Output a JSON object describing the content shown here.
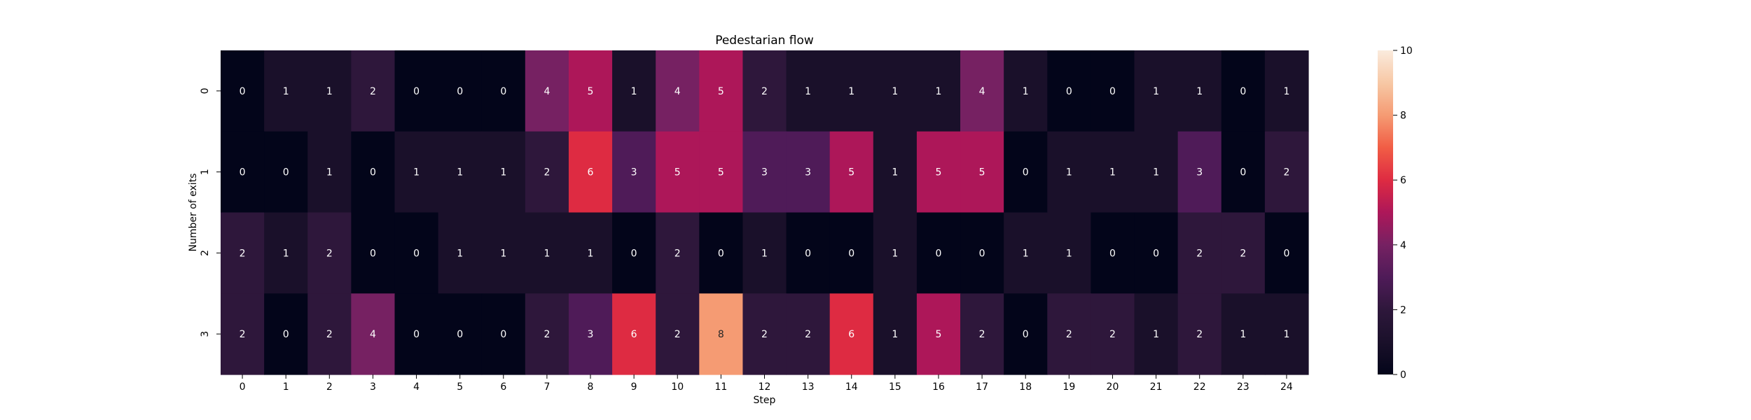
{
  "chart_data": {
    "type": "heatmap",
    "title": "Pedestarian flow",
    "xlabel": "Step",
    "ylabel": "Number of exits",
    "x": [
      "0",
      "1",
      "2",
      "3",
      "4",
      "5",
      "6",
      "7",
      "8",
      "9",
      "10",
      "11",
      "12",
      "13",
      "14",
      "15",
      "16",
      "17",
      "18",
      "19",
      "20",
      "21",
      "22",
      "23",
      "24"
    ],
    "y": [
      "0",
      "1",
      "2",
      "3"
    ],
    "values": [
      [
        0,
        1,
        1,
        2,
        0,
        0,
        0,
        4,
        5,
        1,
        4,
        5,
        2,
        1,
        1,
        1,
        1,
        4,
        1,
        0,
        0,
        1,
        1,
        0,
        1
      ],
      [
        0,
        0,
        1,
        0,
        1,
        1,
        1,
        2,
        6,
        3,
        5,
        5,
        3,
        3,
        5,
        1,
        5,
        5,
        0,
        1,
        1,
        1,
        3,
        0,
        2
      ],
      [
        2,
        1,
        2,
        0,
        0,
        1,
        1,
        1,
        1,
        0,
        2,
        0,
        1,
        0,
        0,
        1,
        0,
        0,
        1,
        1,
        0,
        0,
        2,
        2,
        0
      ],
      [
        2,
        0,
        2,
        4,
        0,
        0,
        0,
        2,
        3,
        6,
        2,
        8,
        2,
        2,
        6,
        1,
        5,
        2,
        0,
        2,
        2,
        1,
        2,
        1,
        1
      ]
    ],
    "colorbar": {
      "min": 0,
      "max": 10,
      "ticks": [
        "0",
        "2",
        "4",
        "6",
        "8",
        "10"
      ],
      "colormap": "rocket"
    },
    "annotations": true,
    "grid": false
  }
}
